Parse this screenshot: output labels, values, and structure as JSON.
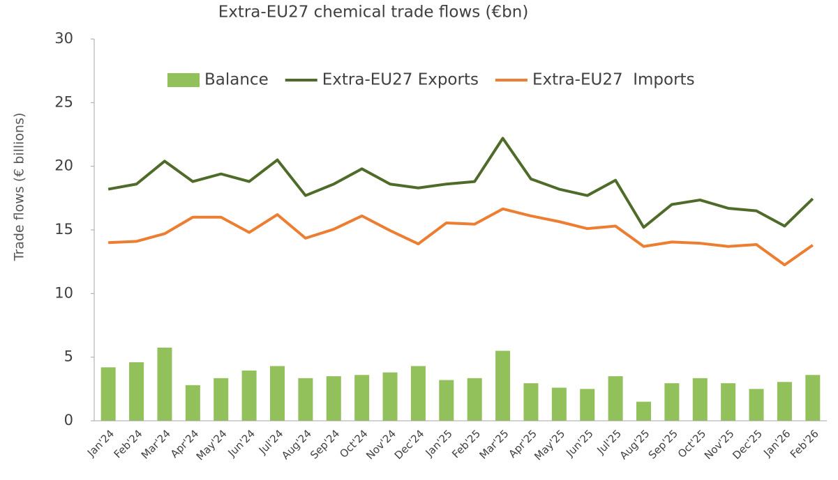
{
  "chart_data": {
    "type": "combo",
    "title": "Extra-EU27 chemical trade flows (€bn)",
    "y_label": "Trade flows (€ billions)",
    "categories": [
      "Jan'24",
      "Feb'24",
      "Mar'24",
      "Apr'24",
      "May'24",
      "Jun'24",
      "Jul'24",
      "Aug'24",
      "Sep'24",
      "Oct'24",
      "Nov'24",
      "Dec'24",
      "Jan'25",
      "Feb'25",
      "Mar'25",
      "Apr'25",
      "May'25",
      "Jun'25",
      "Jul'25",
      "Aug'25",
      "Sep'25",
      "Oct'25",
      "Nov'25",
      "Dec'25",
      "Jan'26",
      "Feb'26"
    ],
    "series": [
      {
        "name": "Balance",
        "type": "bar",
        "color": "#92c05a",
        "values": [
          4.2,
          4.6,
          5.75,
          2.8,
          3.35,
          3.95,
          4.3,
          3.35,
          3.5,
          3.6,
          3.8,
          4.3,
          3.2,
          3.35,
          5.5,
          2.95,
          2.6,
          2.5,
          3.5,
          1.5,
          2.95,
          3.35,
          2.95,
          2.5,
          3.05,
          3.6
        ]
      },
      {
        "name": "Extra-EU27 Exports",
        "type": "line",
        "color": "#4f6b2a",
        "values": [
          18.2,
          18.6,
          20.4,
          18.8,
          19.4,
          18.8,
          20.5,
          17.7,
          18.6,
          19.8,
          18.6,
          18.3,
          18.6,
          18.8,
          22.2,
          19.0,
          18.2,
          17.7,
          18.9,
          15.2,
          17.0,
          17.35,
          16.7,
          16.5,
          15.3,
          17.45
        ]
      },
      {
        "name": "Extra-EU27  Imports",
        "type": "line",
        "color": "#ed7d31",
        "values": [
          14.0,
          14.1,
          14.7,
          16.0,
          16.0,
          14.8,
          16.2,
          14.35,
          15.05,
          16.1,
          14.95,
          13.9,
          15.55,
          15.45,
          16.65,
          16.1,
          15.65,
          15.1,
          15.3,
          13.7,
          14.05,
          13.95,
          13.7,
          13.85,
          12.25,
          13.8
        ]
      }
    ],
    "ylim": [
      0,
      30
    ],
    "yticks": [
      0,
      5,
      10,
      15,
      20,
      25,
      30
    ],
    "grid": false,
    "legend": "top"
  }
}
